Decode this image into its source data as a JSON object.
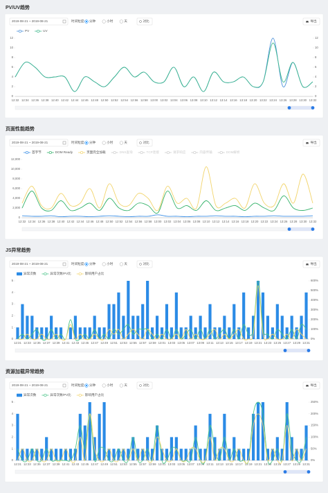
{
  "panels": [
    {
      "title": "PV/UV趋势",
      "date_range": "2019-08-21 ~ 2019-08-21",
      "granularity_label": "时间粒度:",
      "granularities": [
        "分钟",
        "小时",
        "天"
      ],
      "selected": "分钟",
      "compare": "对比",
      "export": "导出"
    },
    {
      "title": "页面性能趋势",
      "date_range": "2019-08-21 ~ 2019-08-21",
      "granularity_label": "时间粒度:",
      "granularities": [
        "分钟",
        "小时",
        "天"
      ],
      "selected": "分钟",
      "compare": "对比",
      "export": "导出"
    },
    {
      "title": "JS异常趋势",
      "date_range": "2019-08-21 ~ 2019-08-21",
      "granularity_label": "时间粒度:",
      "granularities": [
        "分钟",
        "小时",
        "天"
      ],
      "selected": "分钟",
      "compare": "对比",
      "export": "导出"
    },
    {
      "title": "资源加载异常趋势",
      "date_range": "2019-08-21 ~ 2019-08-21",
      "granularity_label": "时间粒度:",
      "granularities": [
        "分钟",
        "小时",
        "天"
      ],
      "selected": "分钟",
      "compare": "对比",
      "export": "导出"
    }
  ],
  "chart_data": [
    {
      "type": "line",
      "categories": [
        "12:32",
        "12:34",
        "12:36",
        "12:38",
        "12:40",
        "12:42",
        "12:44",
        "12:46",
        "12:48",
        "12:50",
        "12:52",
        "12:54",
        "12:56",
        "12:58",
        "13:00",
        "13:02",
        "13:04",
        "13:06",
        "13:08",
        "13:10",
        "13:12",
        "13:14",
        "13:16",
        "13:18",
        "13:20",
        "13:22",
        "13:24",
        "13:26",
        "13:28",
        "13:30",
        "13:32"
      ],
      "series": [
        {
          "name": "PV",
          "type": "line",
          "color": "#4a90d9",
          "values": [
            4,
            7,
            6,
            4,
            4,
            4,
            1,
            4,
            3,
            2,
            4,
            6,
            4,
            5,
            3,
            3,
            6,
            2,
            4,
            1,
            5,
            3,
            3,
            4,
            2,
            3,
            12,
            2,
            7,
            2,
            3
          ]
        },
        {
          "name": "UV",
          "type": "line",
          "color": "#3db88b",
          "values": [
            4,
            7,
            6,
            4,
            4,
            4,
            1,
            4,
            3,
            2,
            4,
            6,
            4,
            5,
            3,
            3,
            6,
            2,
            4,
            1,
            5,
            3,
            3,
            4,
            2,
            3,
            11,
            3,
            7,
            2,
            3
          ]
        }
      ],
      "ylim": [
        0,
        12
      ],
      "yticks": [
        0,
        2,
        4,
        6,
        8,
        10,
        12
      ],
      "y2lim": [
        0,
        12
      ],
      "y2ticks": [
        0,
        2,
        4,
        6,
        8,
        10,
        12
      ]
    },
    {
      "type": "line",
      "categories": [
        "12:32",
        "12:34",
        "12:36",
        "12:38",
        "12:40",
        "12:42",
        "12:44",
        "12:46",
        "12:48",
        "12:50",
        "12:52",
        "12:54",
        "12:56",
        "12:58",
        "13:00",
        "13:02",
        "13:04",
        "13:06",
        "13:08",
        "13:10",
        "13:12",
        "13:14",
        "13:16",
        "13:18",
        "13:20",
        "13:22",
        "13:24",
        "13:26",
        "13:28",
        "13:30",
        "13:32"
      ],
      "series": [
        {
          "name": "首字节",
          "type": "line",
          "color": "#3a8ee6",
          "values": [
            400,
            300,
            300,
            400,
            200,
            300,
            300,
            200,
            300,
            400,
            300,
            200,
            300,
            300,
            600,
            300,
            300,
            200,
            300,
            300,
            400,
            300,
            300,
            200,
            300,
            300,
            400,
            300,
            300,
            300,
            400
          ]
        },
        {
          "name": "DOM Ready",
          "type": "line",
          "color": "#34b26a",
          "values": [
            2000,
            5500,
            2000,
            1500,
            3500,
            1500,
            2000,
            3000,
            1500,
            4000,
            2000,
            1500,
            3000,
            2500,
            1000,
            5500,
            2000,
            2500,
            1500,
            3500,
            1500,
            2000,
            2500,
            1500,
            3000,
            2000,
            1500,
            4500,
            2000,
            1500,
            2000
          ]
        },
        {
          "name": "页面完全加载",
          "type": "line",
          "color": "#f2d46b",
          "values": [
            3000,
            6500,
            2500,
            2000,
            5000,
            2500,
            3000,
            6000,
            2000,
            7000,
            3000,
            2500,
            5000,
            4000,
            1500,
            6500,
            3000,
            4000,
            2000,
            10500,
            2500,
            3000,
            4000,
            2000,
            7000,
            3000,
            2500,
            7000,
            3000,
            9000,
            3000
          ]
        }
      ],
      "inactive_legend": [
        "DNS查询",
        "TCP连接",
        "请求响应",
        "内容传输",
        "DOM解析"
      ],
      "ylim": [
        0,
        12000
      ],
      "yticks": [
        0,
        {
          "value": 2000,
          "label": "2,000"
        },
        {
          "value": 4000,
          "label": "4,000"
        },
        {
          "value": 6000,
          "label": "6,000"
        },
        {
          "value": 8000,
          "label": "8,000"
        },
        {
          "value": 10000,
          "label": "10,000"
        },
        {
          "value": 12000,
          "label": "12,000"
        }
      ]
    },
    {
      "type": "bar",
      "categories": [
        "12:31",
        null,
        "12:33",
        null,
        "12:35",
        null,
        "12:37",
        null,
        "12:39",
        null,
        "12:41",
        null,
        "12:43",
        null,
        "12:45",
        null,
        "12:47",
        null,
        "12:49",
        null,
        "12:51",
        null,
        "12:53",
        null,
        "12:55",
        null,
        "12:57",
        null,
        "12:59",
        null,
        "13:01",
        null,
        "13:03",
        null,
        "13:05",
        null,
        "13:07",
        null,
        "13:09",
        null,
        "13:11",
        null,
        "13:13",
        null,
        "13:15",
        null,
        "13:17",
        null,
        "13:19",
        null,
        "13:21",
        null,
        "13:23",
        null,
        "13:25",
        null,
        "13:27",
        null,
        "13:29",
        null,
        "13:31"
      ],
      "series": [
        {
          "name": "异常次数",
          "type": "bar",
          "color": "#2b8be6",
          "values": [
            1,
            3,
            2,
            2,
            1,
            1,
            1,
            2,
            1,
            1,
            0,
            1,
            2,
            1,
            1,
            1,
            2,
            1,
            1,
            3,
            3,
            4,
            2,
            5,
            2,
            2,
            3,
            5,
            1,
            2,
            1,
            3,
            1,
            4,
            1,
            1,
            2,
            1,
            2,
            1,
            3,
            1,
            1,
            2,
            1,
            3,
            1,
            4,
            1,
            2,
            5,
            4,
            2,
            1,
            3,
            2,
            1,
            2,
            1,
            2,
            4
          ]
        },
        {
          "name": "异常次数/PV比",
          "type": "line",
          "axis": "y2",
          "color": "#4cc48a",
          "values": [
            0,
            50,
            0,
            50,
            100,
            0,
            0,
            100,
            0,
            50,
            0,
            200,
            0,
            0,
            50,
            0,
            100,
            0,
            50,
            0,
            100,
            50,
            100,
            150,
            50,
            100,
            100,
            100,
            0,
            50,
            0,
            100,
            0,
            100,
            0,
            50,
            100,
            0,
            100,
            0,
            100,
            0,
            50,
            100,
            0,
            100,
            0,
            150,
            50,
            100,
            600,
            100,
            50,
            0,
            100,
            50,
            0,
            100,
            0,
            150,
            100
          ]
        },
        {
          "name": "影响用户占比",
          "type": "line",
          "axis": "y2",
          "color": "#f3d66f",
          "values": [
            0,
            0,
            50,
            0,
            0,
            50,
            0,
            0,
            50,
            0,
            0,
            150,
            0,
            50,
            0,
            0,
            50,
            0,
            0,
            100,
            50,
            100,
            0,
            50,
            100,
            50,
            0,
            100,
            50,
            0,
            50,
            0,
            0,
            50,
            0,
            100,
            0,
            50,
            0,
            0,
            50,
            100,
            0,
            50,
            0,
            50,
            100,
            0,
            0,
            50,
            550,
            50,
            0,
            50,
            0,
            0,
            50,
            0,
            100,
            50,
            0
          ]
        }
      ],
      "ylim": [
        0,
        5
      ],
      "yticks": [
        0,
        1,
        2,
        3,
        4,
        5
      ],
      "y2lim": [
        0,
        600
      ],
      "y2ticks": [
        {
          "value": 0,
          "label": "0%"
        },
        {
          "value": 100,
          "label": "100%"
        },
        {
          "value": 200,
          "label": "200%"
        },
        {
          "value": 300,
          "label": "300%"
        },
        {
          "value": 400,
          "label": "400%"
        },
        {
          "value": 500,
          "label": "500%"
        },
        {
          "value": 600,
          "label": "600%"
        }
      ]
    },
    {
      "type": "bar",
      "categories": [
        "12:31",
        null,
        "12:33",
        null,
        "12:35",
        null,
        "12:37",
        null,
        "12:39",
        null,
        "12:41",
        null,
        "12:43",
        null,
        "12:45",
        null,
        "12:47",
        null,
        "12:49",
        null,
        "12:51",
        null,
        "12:53",
        null,
        "12:55",
        null,
        "12:57",
        null,
        "12:59",
        null,
        "13:01",
        null,
        "13:03",
        null,
        "13:05",
        null,
        "13:07",
        null,
        "13:09",
        null,
        "13:11",
        null,
        "13:13",
        null,
        "13:15",
        null,
        "13:17",
        null,
        "13:19",
        null,
        "13:21",
        null,
        "13:23",
        null,
        "13:25",
        null,
        "13:27",
        null,
        "13:29",
        null,
        "13:31"
      ],
      "series": [
        {
          "name": "异常次数",
          "type": "bar",
          "color": "#2b8be6",
          "values": [
            4,
            1,
            1,
            1,
            1,
            1,
            2,
            1,
            1,
            1,
            1,
            1,
            1,
            4,
            3,
            5,
            2,
            4,
            5,
            1,
            1,
            1,
            1,
            1,
            2,
            1,
            1,
            2,
            1,
            3,
            1,
            1,
            2,
            2,
            1,
            1,
            1,
            3,
            1,
            1,
            4,
            2,
            1,
            4,
            1,
            2,
            1,
            1,
            1,
            4,
            5,
            5,
            1,
            1,
            2,
            1,
            5,
            2,
            1,
            1,
            3
          ]
        },
        {
          "name": "异常次数/PV比",
          "type": "line",
          "axis": "y2",
          "color": "#4cc48a",
          "values": [
            50,
            0,
            0,
            50,
            0,
            0,
            50,
            0,
            0,
            0,
            0,
            0,
            50,
            150,
            50,
            200,
            0,
            50,
            50,
            0,
            0,
            50,
            0,
            0,
            100,
            0,
            0,
            50,
            0,
            150,
            0,
            0,
            50,
            50,
            0,
            0,
            0,
            100,
            0,
            0,
            150,
            50,
            0,
            100,
            0,
            50,
            0,
            0,
            0,
            200,
            250,
            200,
            0,
            0,
            50,
            0,
            200,
            50,
            0,
            0,
            100
          ]
        },
        {
          "name": "影响用户占比",
          "type": "line",
          "axis": "y2",
          "color": "#f3d66f",
          "values": [
            0,
            50,
            0,
            0,
            50,
            0,
            0,
            50,
            0,
            0,
            50,
            0,
            0,
            100,
            0,
            200,
            50,
            0,
            0,
            50,
            0,
            0,
            50,
            0,
            50,
            0,
            50,
            0,
            0,
            100,
            50,
            0,
            0,
            50,
            0,
            0,
            50,
            50,
            0,
            0,
            100,
            0,
            50,
            50,
            0,
            0,
            50,
            0,
            0,
            150,
            200,
            150,
            0,
            50,
            0,
            0,
            150,
            0,
            50,
            0,
            50
          ]
        }
      ],
      "ylim": [
        0,
        5
      ],
      "yticks": [
        0,
        1,
        2,
        3,
        4,
        5
      ],
      "y2lim": [
        0,
        250
      ],
      "y2ticks": [
        {
          "value": 0,
          "label": "0%"
        },
        {
          "value": 50,
          "label": "50%"
        },
        {
          "value": 100,
          "label": "100%"
        },
        {
          "value": 150,
          "label": "150%"
        },
        {
          "value": 200,
          "label": "200%"
        },
        {
          "value": 250,
          "label": "250%"
        }
      ]
    }
  ]
}
